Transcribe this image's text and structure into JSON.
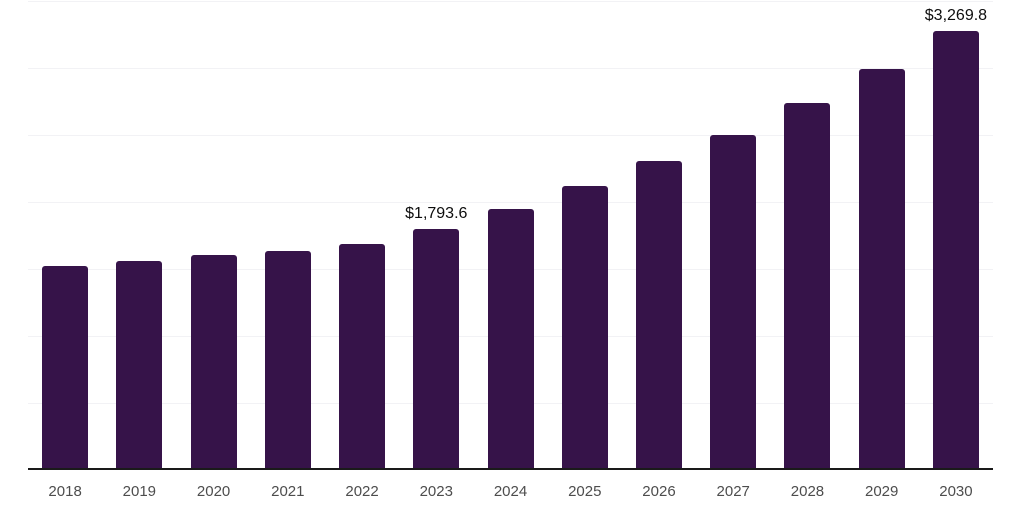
{
  "chart_data": {
    "type": "bar",
    "title": "",
    "xlabel": "",
    "ylabel": "",
    "categories": [
      "2018",
      "2019",
      "2020",
      "2021",
      "2022",
      "2023",
      "2024",
      "2025",
      "2026",
      "2027",
      "2028",
      "2029",
      "2030"
    ],
    "values": [
      1515,
      1552,
      1597,
      1627,
      1679,
      1793.6,
      1940,
      2112,
      2298,
      2493,
      2731,
      2985,
      3269.8
    ],
    "data_labels": {
      "2023": "$1,793.6",
      "2030": "$3,269.8"
    },
    "ylim": [
      0,
      3500
    ],
    "grid_step": 500,
    "grid": "horizontal-only",
    "y_tick_labels_visible": false,
    "legend_position": "none",
    "colors": {
      "bar": "#361349",
      "grid_line": "#f2f2f5",
      "axis_line": "#1a1a1a",
      "tick_label": "#4d4d4d",
      "data_label": "#0d0d0d",
      "background": "#ffffff"
    }
  }
}
